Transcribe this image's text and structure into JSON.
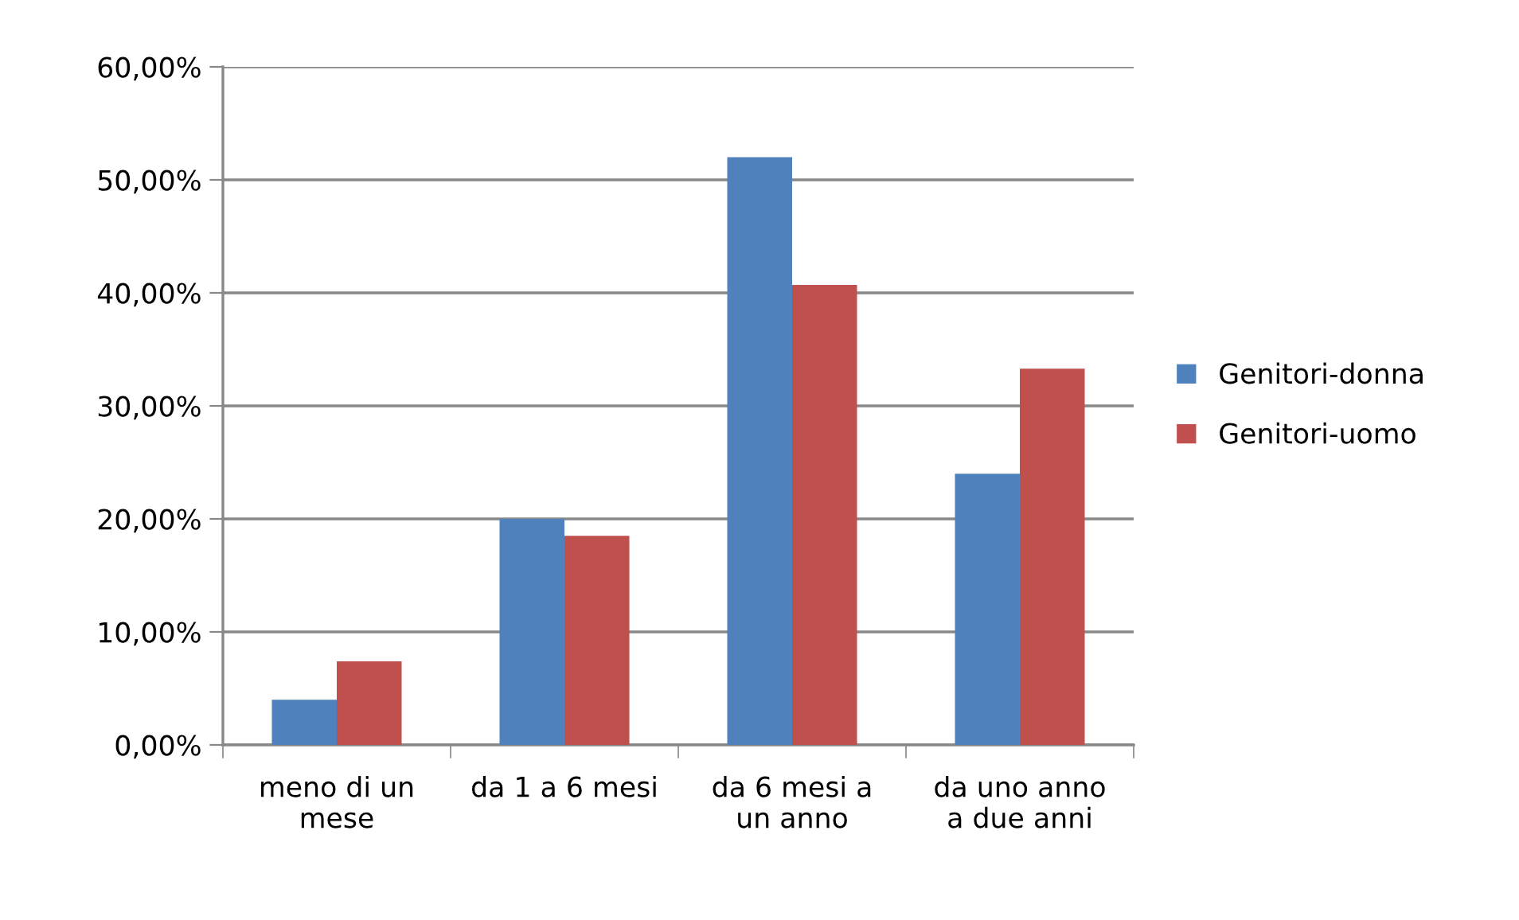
{
  "chart_data": {
    "type": "bar",
    "categories": [
      "meno di un\nmese",
      "da 1 a 6 mesi",
      "da 6 mesi a\nun anno",
      "da uno anno\na due anni"
    ],
    "series": [
      {
        "name": "Genitori-donna",
        "color": "#4f81bd",
        "values": [
          4.0,
          20.0,
          52.0,
          24.0
        ]
      },
      {
        "name": "Genitori-uomo",
        "color": "#c0504d",
        "values": [
          7.4,
          18.5,
          40.7,
          33.3
        ]
      }
    ],
    "ylim": [
      0,
      60
    ],
    "yticks": [
      {
        "value": 0,
        "label": "0,00%"
      },
      {
        "value": 10,
        "label": "10,00%"
      },
      {
        "value": 20,
        "label": "20,00%"
      },
      {
        "value": 30,
        "label": "30,00%"
      },
      {
        "value": 40,
        "label": "40,00%"
      },
      {
        "value": 50,
        "label": "50,00%"
      },
      {
        "value": 60,
        "label": "60,00%"
      }
    ],
    "grid": "y",
    "legend": "right"
  }
}
